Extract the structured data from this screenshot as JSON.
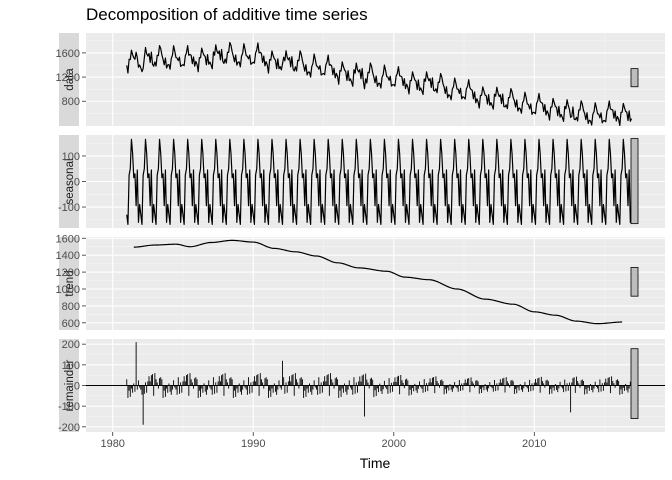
{
  "chart_data": {
    "type": "line",
    "title": "Decomposition of additive time series",
    "xlabel": "Time",
    "x_range": [
      1978.1,
      2019.3
    ],
    "x_ticks": [
      1980,
      1990,
      2000,
      2010
    ],
    "grid": true,
    "background": "#ebebeb",
    "strip_color": "#d9d9d9",
    "line_color": "#000000",
    "range_bar_fill": "#bdbdbd",
    "start": 1981.0,
    "frequency": 12,
    "panels": [
      {
        "name": "data",
        "label": "data",
        "ylim": [
          390,
          1930
        ],
        "y_ticks": [
          800,
          1200,
          1600
        ],
        "range_bar": [
          1040,
          1340
        ]
      },
      {
        "name": "seasonal",
        "label": "seasonal",
        "ylim": [
          -182,
          182
        ],
        "y_ticks": [
          -100,
          0,
          100
        ],
        "range_bar": [
          -165,
          168
        ]
      },
      {
        "name": "trend",
        "label": "trend",
        "ylim": [
          515,
          1615
        ],
        "y_ticks": [
          600,
          800,
          1000,
          1200,
          1400,
          1600
        ],
        "range_bar": [
          915,
          1255
        ]
      },
      {
        "name": "remainder",
        "label": "remainder",
        "ylim": [
          -225,
          225
        ],
        "y_ticks": [
          -200,
          -100,
          0,
          100,
          200
        ],
        "range_bar": [
          -160,
          178
        ],
        "style": "bars"
      }
    ],
    "seasonal_pattern": [
      -130,
      -168,
      25,
      50,
      165,
      110,
      15,
      30,
      -95,
      45,
      -160,
      -90
    ],
    "trend_points": [
      [
        1981.5,
        1495
      ],
      [
        1983.0,
        1520
      ],
      [
        1984.5,
        1530
      ],
      [
        1985.5,
        1500
      ],
      [
        1987.0,
        1550
      ],
      [
        1988.5,
        1575
      ],
      [
        1990.0,
        1555
      ],
      [
        1991.5,
        1480
      ],
      [
        1993.0,
        1440
      ],
      [
        1994.5,
        1390
      ],
      [
        1996.0,
        1310
      ],
      [
        1997.5,
        1250
      ],
      [
        1999.5,
        1210
      ],
      [
        2000.8,
        1140
      ],
      [
        2002.5,
        1110
      ],
      [
        2004.5,
        1000
      ],
      [
        2006.5,
        880
      ],
      [
        2008.5,
        820
      ],
      [
        2010.0,
        730
      ],
      [
        2011.5,
        690
      ],
      [
        2013.0,
        620
      ],
      [
        2014.5,
        590
      ],
      [
        2016.3,
        610
      ]
    ],
    "trend_start": 1981.5,
    "trend_end": 2016.3,
    "remainder_pattern": [
      30,
      -45,
      15,
      -20,
      55,
      -35,
      20,
      -60,
      40,
      -15,
      25,
      -50,
      10,
      45,
      -25,
      -40,
      35,
      -10,
      60,
      -30,
      20,
      -55,
      15,
      40,
      -20,
      30,
      -45,
      50,
      -15,
      -35
    ],
    "remainder_spikes": [
      [
        1981.7,
        210
      ],
      [
        1982.2,
        -190
      ],
      [
        1997.9,
        -150
      ],
      [
        1992.1,
        120
      ],
      [
        2012.6,
        -130
      ]
    ],
    "remainder_decay": [
      [
        1981.0,
        1.0
      ],
      [
        1997.0,
        1.0
      ],
      [
        2005.0,
        0.65
      ],
      [
        2016.6,
        0.75
      ]
    ]
  }
}
